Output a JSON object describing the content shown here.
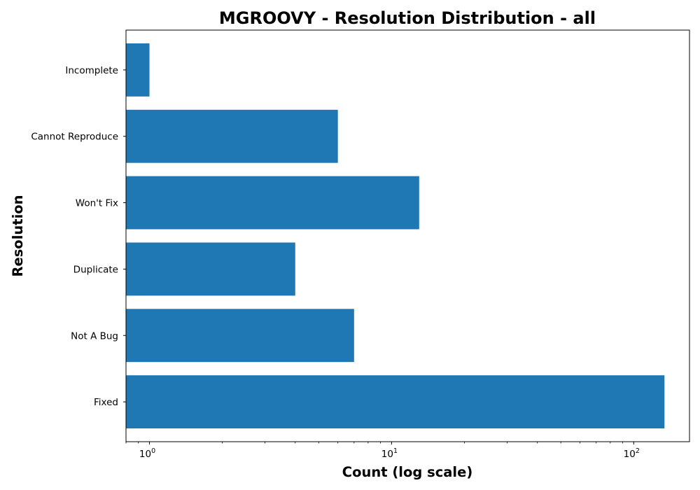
{
  "chart_data": {
    "type": "bar",
    "orientation": "horizontal",
    "title": "MGROOVY - Resolution Distribution - all",
    "xlabel": "Count (log scale)",
    "ylabel": "Resolution",
    "xscale": "log",
    "xlim": [
      0.8,
      170
    ],
    "categories": [
      "Fixed",
      "Not A Bug",
      "Duplicate",
      "Won't Fix",
      "Cannot Reproduce",
      "Incomplete"
    ],
    "values": [
      134,
      7,
      4,
      13,
      6,
      1
    ],
    "xticks": [
      {
        "base": "10",
        "exp": "0",
        "value": 1
      },
      {
        "base": "10",
        "exp": "1",
        "value": 10
      },
      {
        "base": "10",
        "exp": "2",
        "value": 100
      }
    ],
    "bar_color": "#1f77b4",
    "grid": false,
    "legend": "none"
  }
}
